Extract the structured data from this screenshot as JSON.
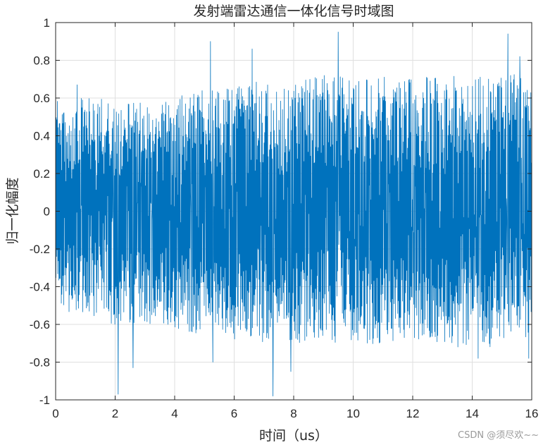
{
  "chart_data": {
    "type": "line",
    "title": "发射端雷达通信一体化信号时域图",
    "xlabel": "时间（us）",
    "ylabel": "归一化幅度",
    "xlim": [
      0,
      16
    ],
    "ylim": [
      -1,
      1
    ],
    "xticks": [
      0,
      2,
      4,
      6,
      8,
      10,
      12,
      14,
      16
    ],
    "yticks": [
      -1,
      -0.8,
      -0.6,
      -0.4,
      -0.2,
      0,
      0.2,
      0.4,
      0.6,
      0.8,
      1
    ],
    "ytick_labels": [
      "-1",
      "-0.8",
      "-0.6",
      "-0.4",
      "-0.2",
      "0",
      "0.2",
      "0.4",
      "0.6",
      "0.8",
      "1"
    ],
    "grid": true,
    "line_color": "#0072BD",
    "envelope": {
      "x": [
        0,
        0.5,
        1,
        1.5,
        2,
        2.5,
        3,
        3.5,
        4,
        4.5,
        5,
        5.5,
        6,
        6.5,
        7,
        7.5,
        8,
        8.5,
        9,
        9.5,
        10,
        10.5,
        11,
        11.5,
        12,
        12.5,
        13,
        13.5,
        14,
        14.5,
        15,
        15.5,
        16
      ],
      "upper": [
        0.62,
        0.5,
        0.65,
        0.6,
        0.56,
        0.58,
        0.6,
        0.58,
        0.62,
        0.62,
        0.66,
        0.64,
        0.66,
        0.68,
        0.7,
        0.66,
        0.68,
        0.7,
        0.72,
        0.72,
        0.7,
        0.7,
        0.72,
        0.7,
        0.72,
        0.72,
        0.7,
        0.72,
        0.72,
        0.74,
        0.74,
        0.74,
        0.72
      ],
      "lower": [
        -0.45,
        -0.55,
        -0.55,
        -0.58,
        -0.6,
        -0.6,
        -0.6,
        -0.6,
        -0.62,
        -0.64,
        -0.66,
        -0.66,
        -0.68,
        -0.68,
        -0.7,
        -0.7,
        -0.7,
        -0.7,
        -0.7,
        -0.7,
        -0.68,
        -0.7,
        -0.72,
        -0.7,
        -0.72,
        -0.72,
        -0.7,
        -0.72,
        -0.72,
        -0.72,
        -0.72,
        -0.72,
        -0.72
      ]
    },
    "peaks": [
      {
        "x": 0.72,
        "y": 0.67
      },
      {
        "x": 2.1,
        "y": -0.97
      },
      {
        "x": 2.6,
        "y": -0.83
      },
      {
        "x": 5.2,
        "y": 0.9
      },
      {
        "x": 5.28,
        "y": -0.8
      },
      {
        "x": 6.6,
        "y": 0.86
      },
      {
        "x": 7.3,
        "y": -0.98
      },
      {
        "x": 7.9,
        "y": -0.85
      },
      {
        "x": 9.5,
        "y": 0.95
      },
      {
        "x": 14.2,
        "y": -0.78
      },
      {
        "x": 15.2,
        "y": 0.94
      },
      {
        "x": 15.6,
        "y": 0.82
      },
      {
        "x": 15.9,
        "y": -0.78
      }
    ]
  },
  "watermark": "CSDN @须尽欢~~"
}
